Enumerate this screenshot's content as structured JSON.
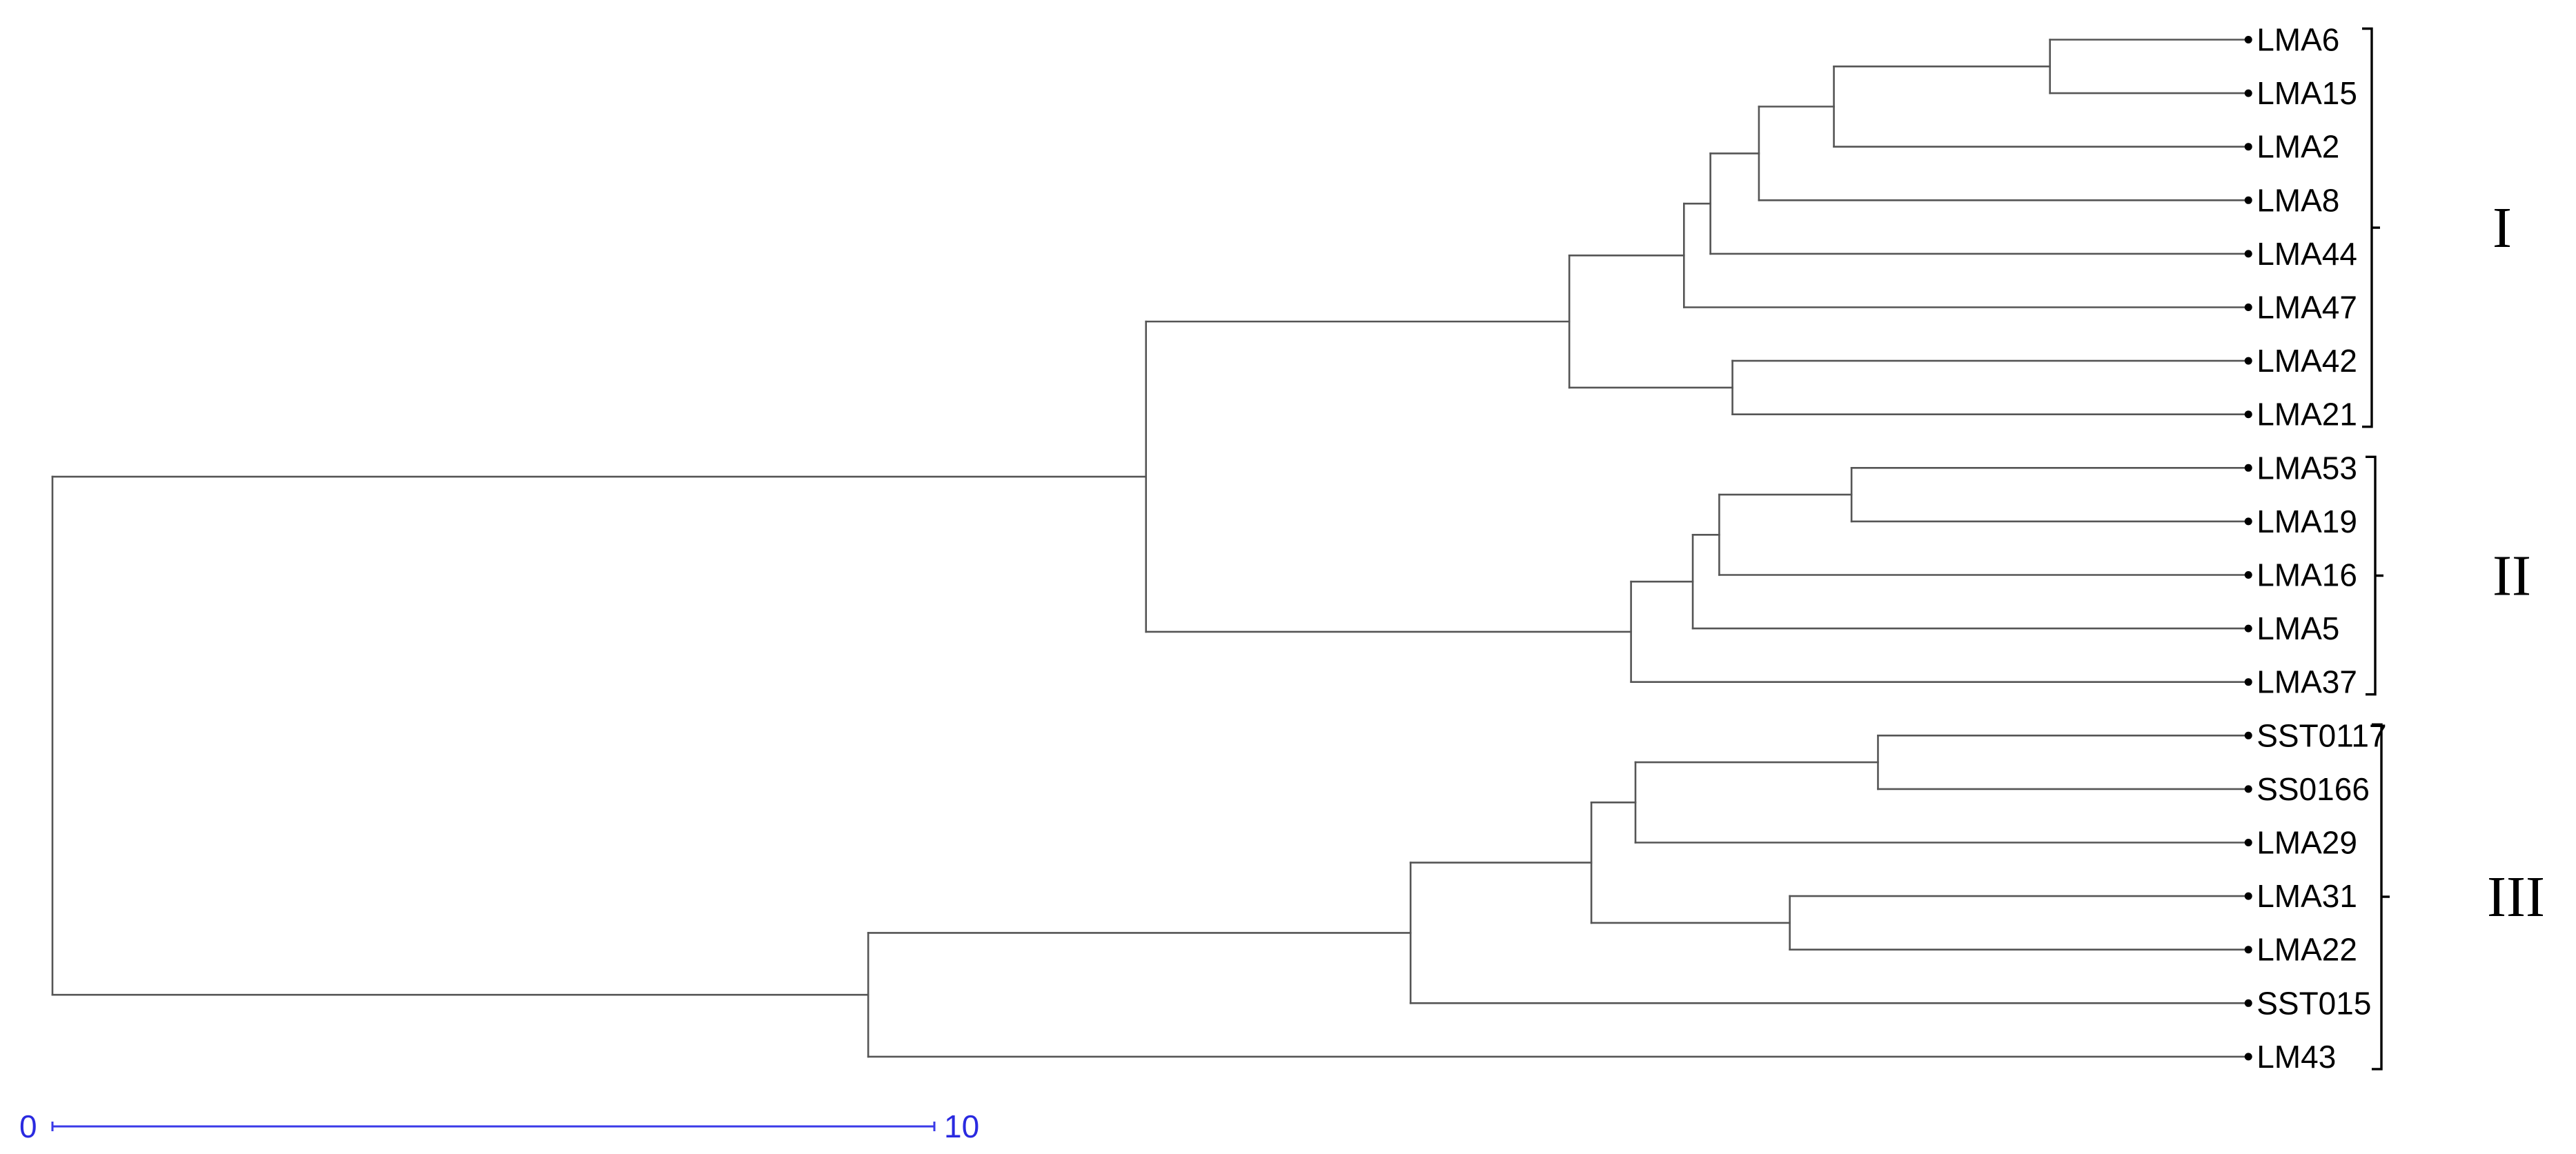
{
  "colors": {
    "branch": "#555555",
    "label": "#000000",
    "scale": "#3a3ae8"
  },
  "leaves": [
    "LMA6",
    "LMA15",
    "LMA2",
    "LMA8",
    "LMA44",
    "LMA47",
    "LMA42",
    "LMA21",
    "LMA53",
    "LMA19",
    "LMA16",
    "LMA5",
    "LMA37",
    "SST0117",
    "SS0166",
    "LMA29",
    "LMA31",
    "LMA22",
    "SST015",
    "LM43"
  ],
  "clusters": [
    {
      "label": "I",
      "first": 0,
      "last": 7
    },
    {
      "label": "II",
      "first": 8,
      "last": 12
    },
    {
      "label": "III",
      "first": 13,
      "last": 19
    }
  ],
  "scale_bar": {
    "start_label": "0",
    "end_label": "10",
    "start_value": 0,
    "end_value": 10
  },
  "tree": {
    "d": 0,
    "c": [
      {
        "d": 12.4,
        "c": [
          {
            "d": 17.2,
            "c": [
              {
                "d": 18.5,
                "c": [
                  {
                    "d": 18.8,
                    "c": [
                      {
                        "d": 19.35,
                        "c": [
                          {
                            "d": 20.2,
                            "c": [
                              {
                                "d": 22.65,
                                "c": [
                                  {
                                    "l": 0
                                  },
                                  {
                                    "l": 1
                                  }
                                ]
                              },
                              {
                                "l": 2
                              }
                            ]
                          },
                          {
                            "l": 3
                          }
                        ]
                      },
                      {
                        "l": 4
                      }
                    ]
                  },
                  {
                    "l": 5
                  }
                ]
              },
              {
                "d": 19.05,
                "c": [
                  {
                    "l": 6
                  },
                  {
                    "l": 7
                  }
                ]
              }
            ]
          },
          {
            "d": 17.9,
            "c": [
              {
                "d": 18.6,
                "c": [
                  {
                    "d": 18.9,
                    "c": [
                      {
                        "d": 20.4,
                        "c": [
                          {
                            "l": 8
                          },
                          {
                            "l": 9
                          }
                        ]
                      },
                      {
                        "l": 10
                      }
                    ]
                  },
                  {
                    "l": 11
                  }
                ]
              },
              {
                "l": 12
              }
            ]
          }
        ]
      },
      {
        "d": 9.25,
        "c": [
          {
            "d": 15.4,
            "c": [
              {
                "d": 17.45,
                "c": [
                  {
                    "d": 17.95,
                    "c": [
                      {
                        "d": 20.7,
                        "c": [
                          {
                            "l": 13
                          },
                          {
                            "l": 14
                          }
                        ]
                      },
                      {
                        "l": 15
                      }
                    ]
                  },
                  {
                    "d": 19.7,
                    "c": [
                      {
                        "l": 16
                      },
                      {
                        "l": 17
                      }
                    ]
                  }
                ]
              },
              {
                "l": 18
              }
            ]
          },
          {
            "l": 19
          }
        ]
      }
    ]
  },
  "tree_leaf_depth": 24.9
}
